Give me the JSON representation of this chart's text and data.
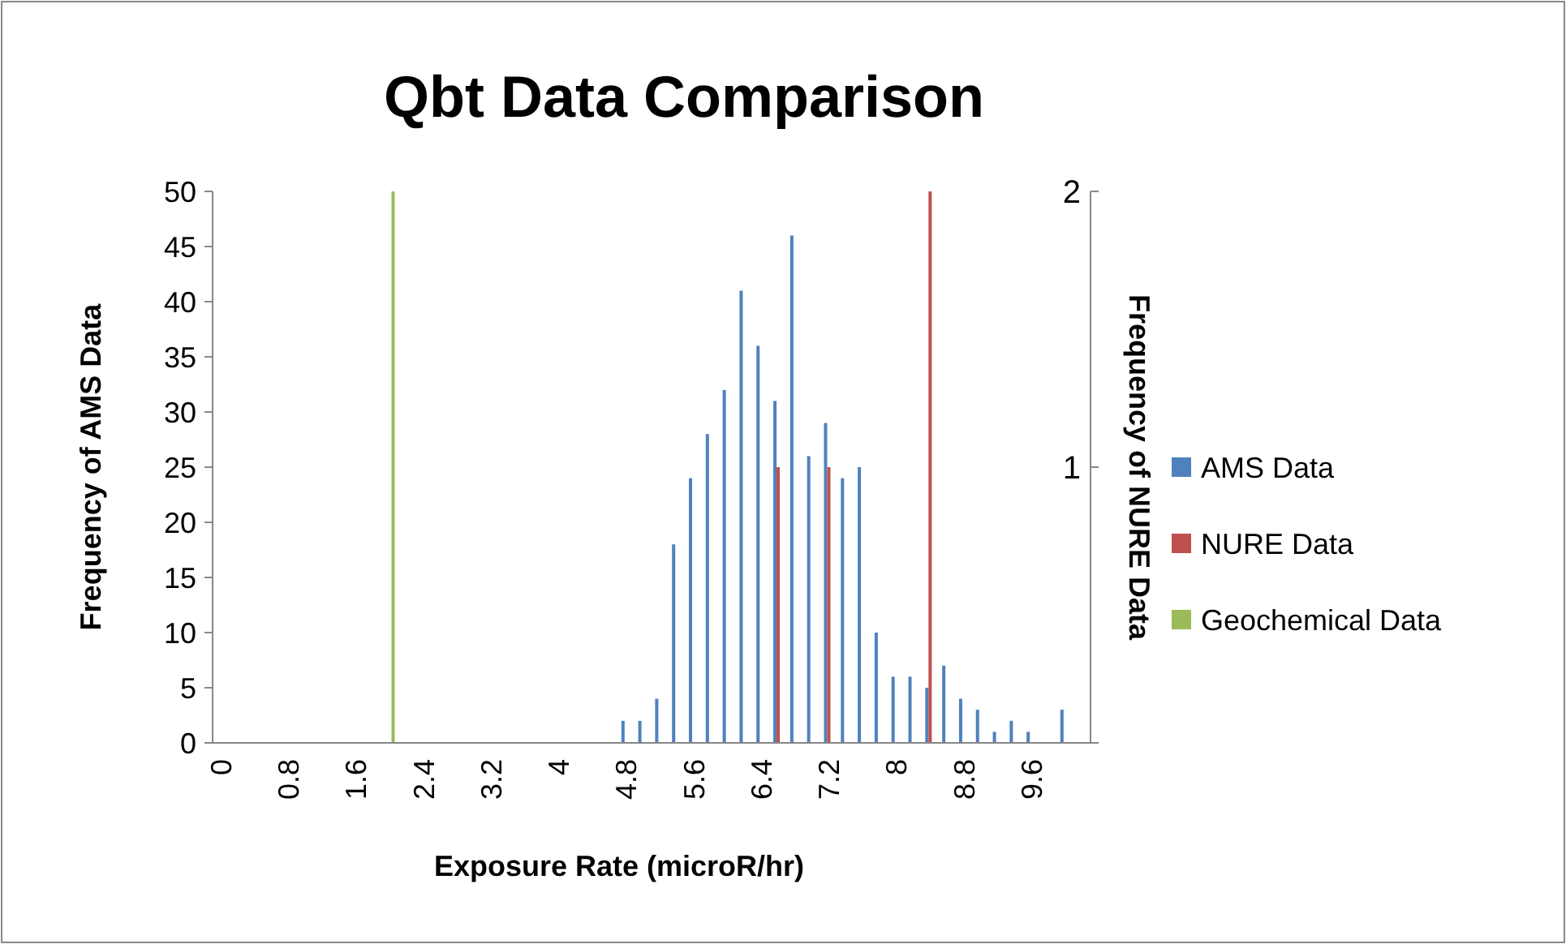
{
  "chart_data": {
    "type": "bar",
    "title": "Qbt Data Comparison",
    "xlabel": "Exposure Rate (microR/hr)",
    "ylabel": "Frequency of AMS Data",
    "y2label": "Frequency of NURE Data",
    "categories": [
      "0",
      null,
      null,
      null,
      "0.8",
      null,
      null,
      null,
      "1.6",
      null,
      null,
      null,
      "2.4",
      null,
      null,
      null,
      "3.2",
      null,
      null,
      null,
      "4",
      null,
      null,
      null,
      "4.8",
      null,
      null,
      null,
      "5.6",
      null,
      null,
      null,
      "6.4",
      null,
      null,
      null,
      "7.2",
      null,
      null,
      null,
      "8",
      null,
      null,
      null,
      "8.8",
      null,
      null,
      null,
      "9.6",
      null,
      null,
      null
    ],
    "series": [
      {
        "name": "AMS Data",
        "color": "#4f81bd",
        "values": [
          0,
          0,
          0,
          0,
          0,
          0,
          0,
          0,
          0,
          0,
          0,
          0,
          0,
          0,
          0,
          0,
          0,
          0,
          0,
          0,
          0,
          0,
          0,
          0,
          2,
          2,
          4,
          18,
          24,
          28,
          32,
          41,
          36,
          31,
          46,
          26,
          29,
          24,
          25,
          10,
          6,
          6,
          5,
          7,
          4,
          3,
          1,
          2,
          1,
          0,
          3,
          0
        ]
      },
      {
        "name": "NURE Data",
        "color": "#c0504d",
        "axis": "y2",
        "values": [
          0,
          0,
          0,
          0,
          0,
          0,
          0,
          0,
          0,
          0,
          0,
          0,
          0,
          0,
          0,
          0,
          0,
          0,
          0,
          0,
          0,
          0,
          0,
          0,
          0,
          0,
          0,
          0,
          0,
          0,
          0,
          0,
          0,
          1,
          0,
          0,
          1,
          0,
          0,
          0,
          0,
          0,
          2,
          0,
          0,
          0,
          0,
          0,
          0,
          0,
          0,
          0
        ]
      },
      {
        "name": "Geochemical Data",
        "color": "#9bbb59",
        "axis": "y2",
        "values": [
          0,
          0,
          0,
          0,
          0,
          0,
          0,
          0,
          0,
          0,
          2,
          0,
          0,
          0,
          0,
          0,
          0,
          0,
          0,
          0,
          0,
          0,
          0,
          0,
          0,
          0,
          0,
          0,
          0,
          0,
          0,
          0,
          0,
          0,
          0,
          0,
          0,
          0,
          0,
          0,
          0,
          0,
          0,
          0,
          0,
          0,
          0,
          0,
          0,
          0,
          0,
          0
        ]
      }
    ],
    "ylim": [
      0,
      50
    ],
    "yticks": [
      0,
      5,
      10,
      15,
      20,
      25,
      30,
      35,
      40,
      45,
      50
    ],
    "y2lim": [
      0,
      2
    ],
    "y2ticks": [
      {
        "value": 0,
        "label": null
      },
      1,
      2
    ],
    "legend": "right",
    "grid": false
  }
}
